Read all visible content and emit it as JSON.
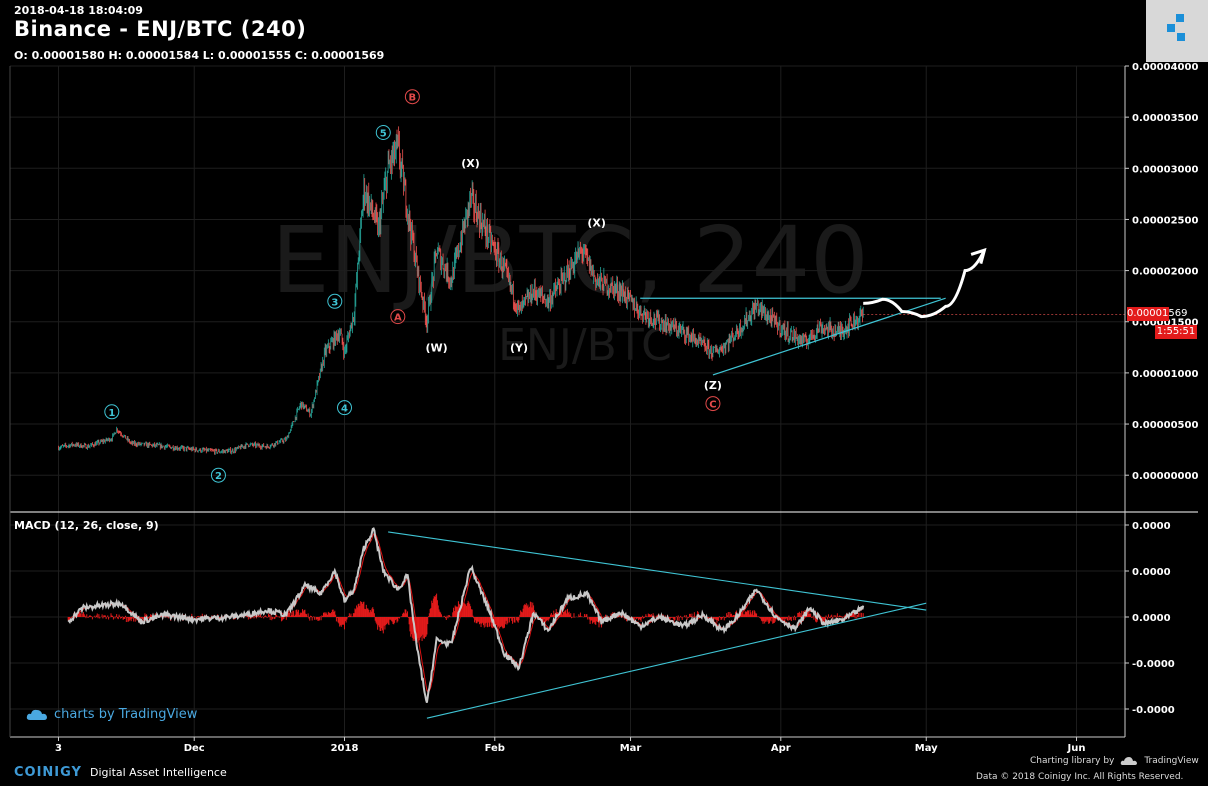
{
  "header": {
    "timestamp": "2018-04-18 18:04:09",
    "title": "Binance - ENJ/BTC (240)",
    "ohlc": "O: 0.00001580 H: 0.00001584 L: 0.00001555 C: 0.00001569",
    "watermark_big": "ENJ/BTC, 240",
    "watermark_small": "ENJ/BTC"
  },
  "price_panel": {
    "current_price_label": "0.00001569",
    "countdown_label": "1:55:51"
  },
  "macd_panel": {
    "label": "MACD (12, 26, close, 9)"
  },
  "footer": {
    "tradingview": "charts by TradingView",
    "brand": "COINIGY",
    "tagline": "Digital Asset Intelligence",
    "charting_library": "Charting library by",
    "tv_small": "TradingView",
    "copyright": "Data © 2018  Coinigy Inc. All Rights Reserved."
  },
  "colors": {
    "up": "#26a69a",
    "down": "#ef5350",
    "trendline": "#3fc4d4",
    "macd_line": "#c8c8c8",
    "histogram": "#e31b1b",
    "wave_count_cyan": "#3fc4d4",
    "wave_count_red": "#e34a4a",
    "background": "#000000"
  },
  "chart_data": [
    {
      "type": "candlestick",
      "title": "Binance - ENJ/BTC (240)",
      "y_tick_labels": [
        "0.00004000",
        "0.00003500",
        "0.00003000",
        "0.00002500",
        "0.00002000",
        "0.00001500",
        "0.00001000",
        "0.00000500",
        "0.00000000"
      ],
      "ylim": [
        -3.5e-06,
        4e-05
      ],
      "x_tick_labels": [
        "3",
        "Dec",
        "2018",
        "Feb",
        "Mar",
        "Apr",
        "May",
        "Jun"
      ],
      "x_tick_dates": [
        "2017-11-03",
        "2017-12-01",
        "2018-01-01",
        "2018-02-01",
        "2018-03-01",
        "2018-04-01",
        "2018-05-01",
        "2018-06-01"
      ],
      "xlim": [
        "2017-10-24",
        "2018-06-11"
      ],
      "grid": true,
      "price_path": [
        [
          "2017-11-03",
          2.7e-06
        ],
        [
          "2017-11-06",
          3e-06
        ],
        [
          "2017-11-09",
          2.8e-06
        ],
        [
          "2017-11-14",
          3.6e-06
        ],
        [
          "2017-11-15",
          4.5e-06
        ],
        [
          "2017-11-18",
          3.1e-06
        ],
        [
          "2017-11-25",
          2.8e-06
        ],
        [
          "2017-12-01",
          2.5e-06
        ],
        [
          "2017-12-06",
          2.3e-06
        ],
        [
          "2017-12-09",
          2.4e-06
        ],
        [
          "2017-12-12",
          3e-06
        ],
        [
          "2017-12-16",
          2.8e-06
        ],
        [
          "2017-12-20",
          3.5e-06
        ],
        [
          "2017-12-23",
          7e-06
        ],
        [
          "2017-12-25",
          6e-06
        ],
        [
          "2017-12-28",
          1.2e-05
        ],
        [
          "2017-12-31",
          1.4e-05
        ],
        [
          "2018-01-01",
          1.2e-05
        ],
        [
          "2018-01-03",
          1.6e-05
        ],
        [
          "2018-01-05",
          2.8e-05
        ],
        [
          "2018-01-08",
          2.4e-05
        ],
        [
          "2018-01-10",
          3e-05
        ],
        [
          "2018-01-12",
          3.2e-05
        ],
        [
          "2018-01-14",
          2.6e-05
        ],
        [
          "2018-01-16",
          2e-05
        ],
        [
          "2018-01-18",
          1.5e-05
        ],
        [
          "2018-01-20",
          2.2e-05
        ],
        [
          "2018-01-23",
          1.9e-05
        ],
        [
          "2018-01-27",
          2.7e-05
        ],
        [
          "2018-01-31",
          2.3e-05
        ],
        [
          "2018-02-03",
          2e-05
        ],
        [
          "2018-02-06",
          1.6e-05
        ],
        [
          "2018-02-09",
          1.8e-05
        ],
        [
          "2018-02-12",
          1.7e-05
        ],
        [
          "2018-02-15",
          1.9e-05
        ],
        [
          "2018-02-19",
          2.2e-05
        ],
        [
          "2018-02-22",
          1.9e-05
        ],
        [
          "2018-02-27",
          1.8e-05
        ],
        [
          "2018-03-03",
          1.6e-05
        ],
        [
          "2018-03-07",
          1.5e-05
        ],
        [
          "2018-03-12",
          1.4e-05
        ],
        [
          "2018-03-18",
          1.2e-05
        ],
        [
          "2018-03-20",
          1.25e-05
        ],
        [
          "2018-03-23",
          1.4e-05
        ],
        [
          "2018-03-27",
          1.65e-05
        ],
        [
          "2018-04-02",
          1.4e-05
        ],
        [
          "2018-04-06",
          1.3e-05
        ],
        [
          "2018-04-09",
          1.45e-05
        ],
        [
          "2018-04-13",
          1.4e-05
        ],
        [
          "2018-04-18",
          1.57e-05
        ]
      ],
      "last_close": 1.569e-05,
      "wave_labels": [
        {
          "text": "1",
          "date": "2017-11-14",
          "price": 6.2e-06,
          "color": "cyan"
        },
        {
          "text": "2",
          "date": "2017-12-06",
          "price": 0.0,
          "color": "cyan"
        },
        {
          "text": "3",
          "date": "2017-12-30",
          "price": 1.7e-05,
          "color": "cyan"
        },
        {
          "text": "4",
          "date": "2018-01-01",
          "price": 6.6e-06,
          "color": "cyan"
        },
        {
          "text": "5",
          "date": "2018-01-09",
          "price": 3.35e-05,
          "color": "cyan"
        },
        {
          "text": "A",
          "date": "2018-01-12",
          "price": 1.55e-05,
          "color": "red"
        },
        {
          "text": "B",
          "date": "2018-01-15",
          "price": 3.7e-05,
          "color": "red"
        },
        {
          "text": "(W)",
          "date": "2018-01-20",
          "price": 1.25e-05,
          "color": "white"
        },
        {
          "text": "(X)",
          "date": "2018-01-27",
          "price": 3.05e-05,
          "color": "white"
        },
        {
          "text": "(Y)",
          "date": "2018-02-06",
          "price": 1.25e-05,
          "color": "white"
        },
        {
          "text": "(X)",
          "date": "2018-02-22",
          "price": 2.47e-05,
          "color": "white"
        },
        {
          "text": "(Z)",
          "date": "2018-03-18",
          "price": 8.8e-06,
          "color": "white"
        },
        {
          "text": "C",
          "date": "2018-03-18",
          "price": 7e-06,
          "color": "red"
        }
      ],
      "trendlines": [
        {
          "from": [
            "2018-03-03",
            1.73e-05
          ],
          "to": [
            "2018-05-04",
            1.73e-05
          ]
        },
        {
          "from": [
            "2018-03-18",
            9.8e-06
          ],
          "to": [
            "2018-05-05",
            1.73e-05
          ]
        }
      ],
      "projection_path": [
        [
          "2018-04-18",
          1.68e-05
        ],
        [
          "2018-04-22",
          1.72e-05
        ],
        [
          "2018-04-26",
          1.6e-05
        ],
        [
          "2018-04-30",
          1.55e-05
        ],
        [
          "2018-05-05",
          1.65e-05
        ],
        [
          "2018-05-09",
          2e-05
        ],
        [
          "2018-05-13",
          2.2e-05
        ]
      ]
    },
    {
      "type": "line",
      "title": "MACD (12, 26, close, 9)",
      "y_tick_labels": [
        "0.0000",
        "0.0000",
        "0.0000",
        "-0.0000",
        "-0.0000"
      ],
      "series": [
        {
          "values": [
            [
              "2017-11-05",
              -0.1
            ],
            [
              "2017-11-08",
              0.2
            ],
            [
              "2017-11-12",
              0.25
            ],
            [
              "2017-11-16",
              0.3
            ],
            [
              "2017-11-20",
              -0.1
            ],
            [
              "2017-11-25",
              0.05
            ],
            [
              "2017-12-01",
              -0.05
            ],
            [
              "2017-12-08",
              0.0
            ],
            [
              "2017-12-12",
              0.05
            ],
            [
              "2017-12-16",
              0.15
            ],
            [
              "2017-12-20",
              0.05
            ],
            [
              "2017-12-24",
              0.7
            ],
            [
              "2017-12-27",
              0.5
            ],
            [
              "2017-12-30",
              1.0
            ],
            [
              "2018-01-01",
              0.35
            ],
            [
              "2018-01-03",
              0.6
            ],
            [
              "2018-01-05",
              1.5
            ],
            [
              "2018-01-07",
              1.9
            ],
            [
              "2018-01-09",
              1.0
            ],
            [
              "2018-01-12",
              0.6
            ],
            [
              "2018-01-14",
              0.9
            ],
            [
              "2018-01-16",
              -0.7
            ],
            [
              "2018-01-18",
              -1.9
            ],
            [
              "2018-01-20",
              -0.5
            ],
            [
              "2018-01-23",
              -0.6
            ],
            [
              "2018-01-27",
              1.1
            ],
            [
              "2018-01-31",
              0.1
            ],
            [
              "2018-02-03",
              -0.8
            ],
            [
              "2018-02-06",
              -1.1
            ],
            [
              "2018-02-09",
              0.1
            ],
            [
              "2018-02-12",
              -0.3
            ],
            [
              "2018-02-16",
              0.4
            ],
            [
              "2018-02-20",
              0.5
            ],
            [
              "2018-02-23",
              -0.1
            ],
            [
              "2018-02-27",
              0.1
            ],
            [
              "2018-03-03",
              -0.2
            ],
            [
              "2018-03-07",
              0.0
            ],
            [
              "2018-03-12",
              -0.2
            ],
            [
              "2018-03-16",
              0.05
            ],
            [
              "2018-03-20",
              -0.3
            ],
            [
              "2018-03-23",
              0.0
            ],
            [
              "2018-03-27",
              0.6
            ],
            [
              "2018-03-31",
              0.0
            ],
            [
              "2018-04-04",
              -0.25
            ],
            [
              "2018-04-07",
              0.2
            ],
            [
              "2018-04-10",
              -0.15
            ],
            [
              "2018-04-14",
              -0.05
            ],
            [
              "2018-04-18",
              0.2
            ]
          ]
        }
      ],
      "histogram": true,
      "trendlines": [
        {
          "from": [
            "2018-01-10",
            1.85
          ],
          "to": [
            "2018-05-01",
            0.15
          ]
        },
        {
          "from": [
            "2018-01-18",
            -2.2
          ],
          "to": [
            "2018-05-01",
            0.3
          ]
        }
      ]
    }
  ]
}
